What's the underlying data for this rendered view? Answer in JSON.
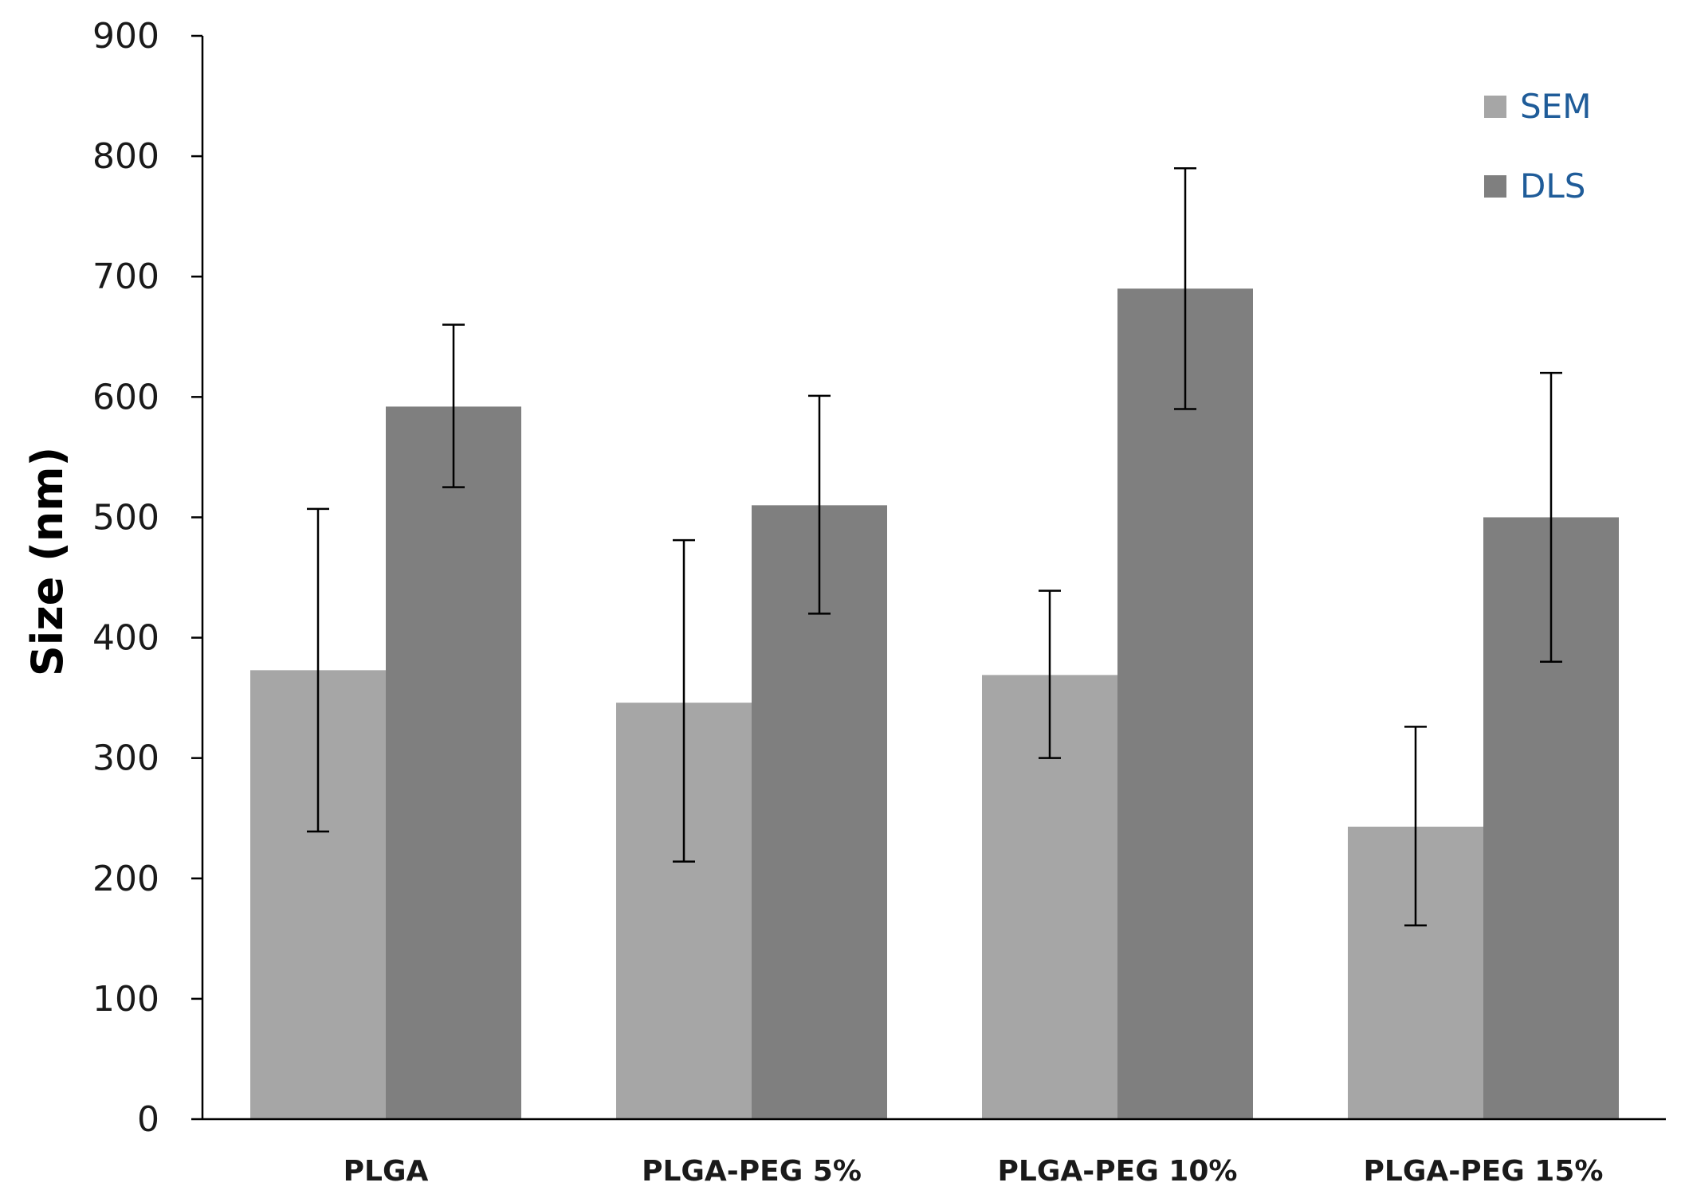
{
  "chart_data": {
    "type": "bar",
    "title": "",
    "xlabel": "",
    "ylabel": "Size (nm)",
    "ylim": [
      0,
      900
    ],
    "yticks": [
      0,
      100,
      200,
      300,
      400,
      500,
      600,
      700,
      800,
      900
    ],
    "grid": false,
    "legend_position": "top-right",
    "categories": [
      "PLGA",
      "PLGA-PEG 5%",
      "PLGA-PEG 10%",
      "PLGA-PEG 15%"
    ],
    "series": [
      {
        "name": "SEM",
        "color": "#a6a6a6",
        "values": [
          373,
          346,
          369,
          243
        ],
        "error_low": [
          239,
          214,
          300,
          161
        ],
        "error_high": [
          507,
          481,
          439,
          326
        ]
      },
      {
        "name": "DLS",
        "color": "#7f7f7f",
        "values": [
          592,
          510,
          690,
          500
        ],
        "error_low": [
          525,
          420,
          590,
          380
        ],
        "error_high": [
          660,
          601,
          790,
          620
        ]
      }
    ]
  }
}
